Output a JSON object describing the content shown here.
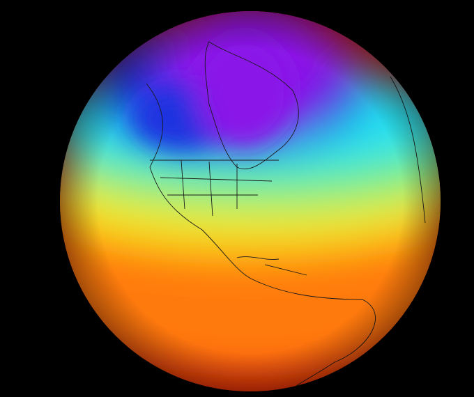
{
  "image": {
    "subject": "globe-temperature-map",
    "colors": {
      "background": "#000000",
      "hot": "#e8200c",
      "warm": "#ff7a10",
      "mild": "#f5e81a",
      "cool": "#6ef07a",
      "cold": "#20e0f0",
      "colder": "#1a30e0",
      "coldest": "#8a18e8",
      "outline": "#1a1a1a"
    }
  }
}
